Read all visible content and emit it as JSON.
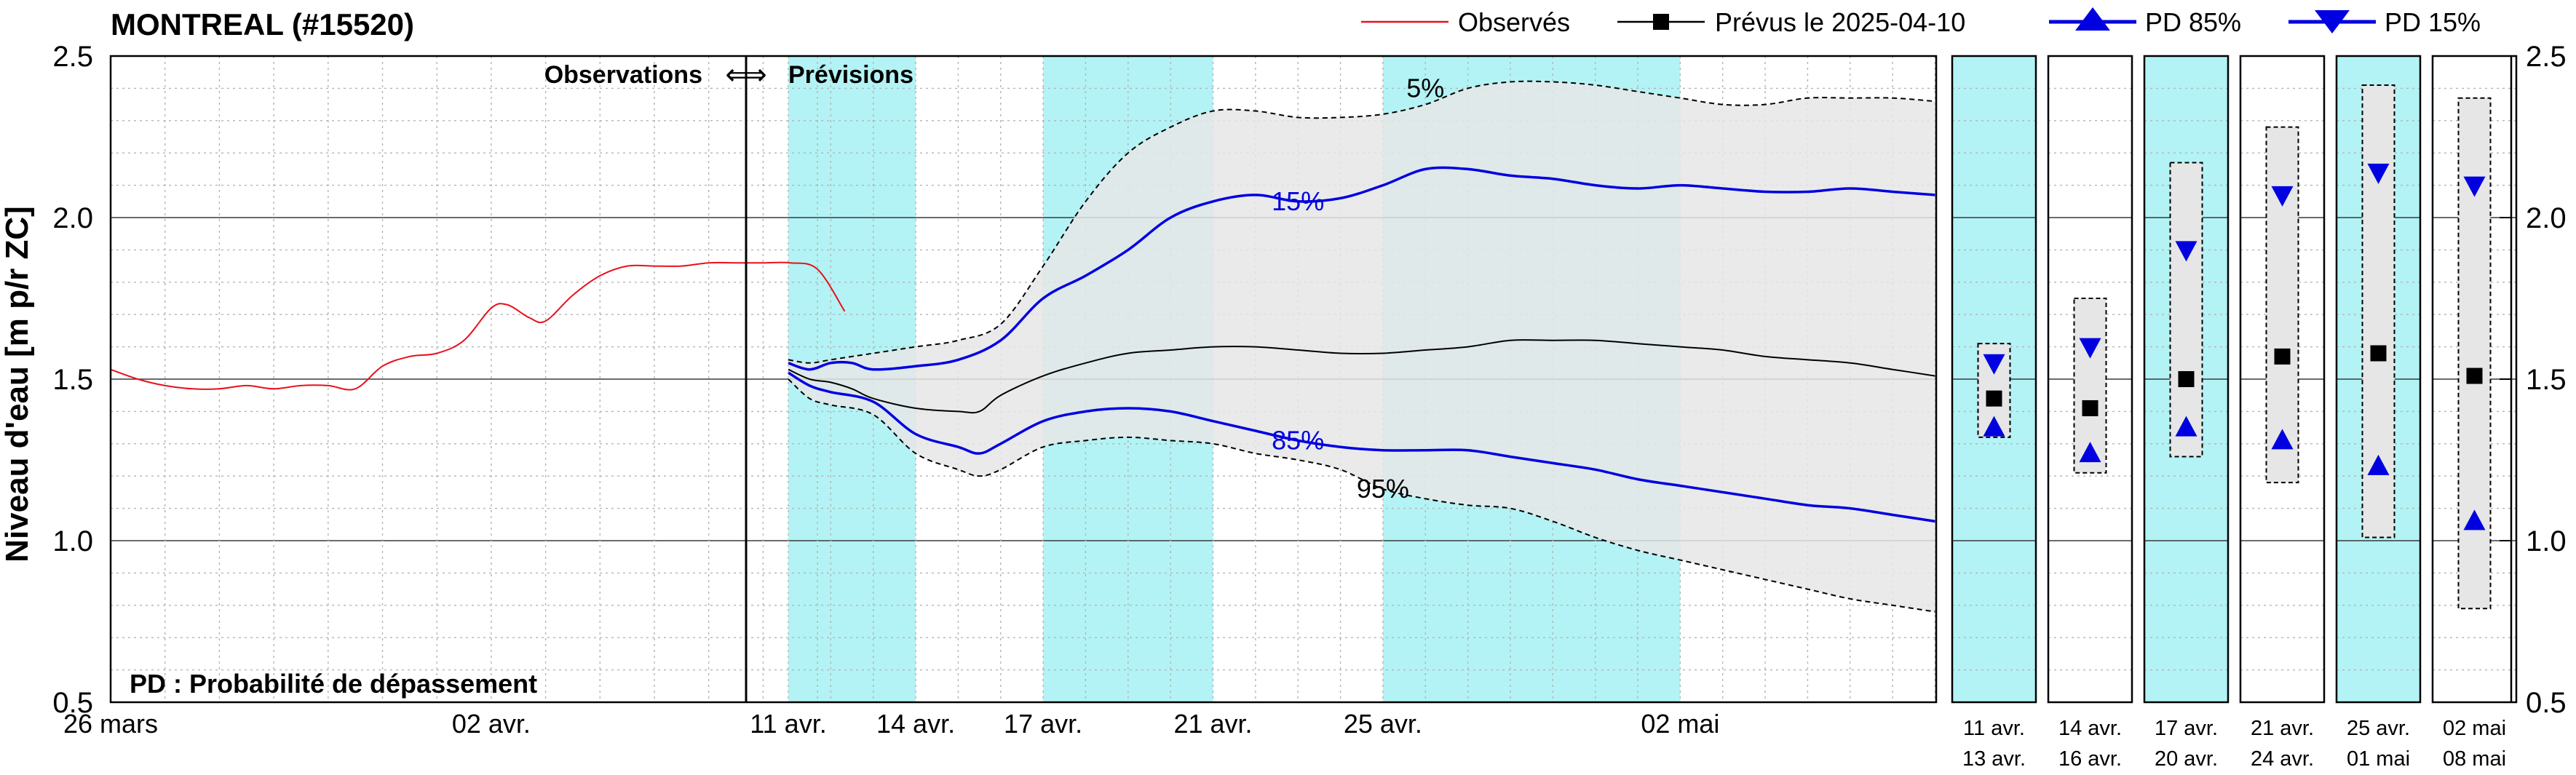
{
  "title": "MONTREAL (#15520)",
  "legend": {
    "observed": "Observés",
    "forecast": "Prévus le 2025-04-10",
    "pd85": "PD 85%",
    "pd15": "PD 15%"
  },
  "annotations": {
    "obs_fcst": "Observations",
    "arrow": "⟺",
    "previsions": "Prévisions",
    "pd_note": "PD : Probabilité de dépassement",
    "p5": "5%",
    "p15": "15%",
    "p85": "85%",
    "p95": "95%"
  },
  "colors": {
    "observed": "#e8111b",
    "forecast": "#000000",
    "pd": "#0000e0",
    "band": "#e6e6e6",
    "highlight": "#b3f3f5"
  },
  "chart_data": {
    "type": "line",
    "ylabel": "Niveau d'eau [m p/r ZC]",
    "ylim": [
      0.5,
      2.5
    ],
    "yticks": [
      "0.5",
      "1.0",
      "1.5",
      "2.0",
      "2.5"
    ],
    "obs_xticks": [
      {
        "day": 0,
        "label": "26 mars"
      },
      {
        "day": 7,
        "label": "02 avr."
      }
    ],
    "fcst_xticks": [
      {
        "day": 0,
        "label": "11 avr."
      },
      {
        "day": 3,
        "label": "14 avr."
      },
      {
        "day": 6,
        "label": "17 avr."
      },
      {
        "day": 10,
        "label": "21 avr."
      },
      {
        "day": 14,
        "label": "25 avr."
      },
      {
        "day": 21,
        "label": "02 mai"
      }
    ],
    "highlight_ranges": [
      [
        0,
        3
      ],
      [
        6,
        10
      ],
      [
        14,
        21
      ]
    ],
    "observed": [
      [
        0,
        1.53
      ],
      [
        0.5,
        1.5
      ],
      [
        1,
        1.48
      ],
      [
        1.5,
        1.47
      ],
      [
        2,
        1.47
      ],
      [
        2.5,
        1.48
      ],
      [
        3,
        1.47
      ],
      [
        3.5,
        1.48
      ],
      [
        4,
        1.48
      ],
      [
        4.5,
        1.47
      ],
      [
        5,
        1.54
      ],
      [
        5.5,
        1.57
      ],
      [
        6,
        1.58
      ],
      [
        6.5,
        1.62
      ],
      [
        7,
        1.72
      ],
      [
        7.3,
        1.73
      ],
      [
        7.7,
        1.69
      ],
      [
        8,
        1.68
      ],
      [
        8.5,
        1.76
      ],
      [
        9,
        1.82
      ],
      [
        9.5,
        1.85
      ],
      [
        10,
        1.85
      ],
      [
        10.5,
        1.85
      ],
      [
        11,
        1.86
      ],
      [
        11.5,
        1.86
      ],
      [
        12,
        1.86
      ],
      [
        12.5,
        1.86
      ],
      [
        13,
        1.84
      ],
      [
        13.5,
        1.71
      ]
    ],
    "forecast": [
      [
        0,
        1.53
      ],
      [
        0.5,
        1.5
      ],
      [
        1,
        1.49
      ],
      [
        1.5,
        1.47
      ],
      [
        2,
        1.44
      ],
      [
        3,
        1.41
      ],
      [
        4,
        1.4
      ],
      [
        4.5,
        1.4
      ],
      [
        5,
        1.45
      ],
      [
        6,
        1.51
      ],
      [
        7,
        1.55
      ],
      [
        8,
        1.58
      ],
      [
        9,
        1.59
      ],
      [
        10,
        1.6
      ],
      [
        11,
        1.6
      ],
      [
        12,
        1.59
      ],
      [
        13,
        1.58
      ],
      [
        14,
        1.58
      ],
      [
        15,
        1.59
      ],
      [
        16,
        1.6
      ],
      [
        17,
        1.62
      ],
      [
        18,
        1.62
      ],
      [
        19,
        1.62
      ],
      [
        20,
        1.61
      ],
      [
        21,
        1.6
      ],
      [
        22,
        1.59
      ],
      [
        23,
        1.57
      ],
      [
        24,
        1.56
      ],
      [
        25,
        1.55
      ],
      [
        26,
        1.53
      ],
      [
        27,
        1.51
      ]
    ],
    "p5": [
      [
        0,
        1.56
      ],
      [
        0.5,
        1.55
      ],
      [
        1,
        1.56
      ],
      [
        2,
        1.58
      ],
      [
        3,
        1.6
      ],
      [
        4,
        1.62
      ],
      [
        5,
        1.67
      ],
      [
        6,
        1.85
      ],
      [
        7,
        2.05
      ],
      [
        8,
        2.2
      ],
      [
        9,
        2.28
      ],
      [
        10,
        2.33
      ],
      [
        11,
        2.33
      ],
      [
        12,
        2.31
      ],
      [
        13,
        2.31
      ],
      [
        14,
        2.32
      ],
      [
        15,
        2.35
      ],
      [
        16,
        2.4
      ],
      [
        17,
        2.42
      ],
      [
        18,
        2.42
      ],
      [
        19,
        2.41
      ],
      [
        20,
        2.39
      ],
      [
        21,
        2.37
      ],
      [
        22,
        2.35
      ],
      [
        23,
        2.35
      ],
      [
        24,
        2.37
      ],
      [
        25,
        2.37
      ],
      [
        26,
        2.37
      ],
      [
        27,
        2.36
      ]
    ],
    "p15": [
      [
        0,
        1.55
      ],
      [
        0.5,
        1.53
      ],
      [
        1,
        1.55
      ],
      [
        1.5,
        1.55
      ],
      [
        2,
        1.53
      ],
      [
        3,
        1.54
      ],
      [
        4,
        1.56
      ],
      [
        5,
        1.62
      ],
      [
        6,
        1.75
      ],
      [
        7,
        1.82
      ],
      [
        8,
        1.9
      ],
      [
        9,
        2.0
      ],
      [
        10,
        2.05
      ],
      [
        11,
        2.07
      ],
      [
        12,
        2.05
      ],
      [
        13,
        2.06
      ],
      [
        14,
        2.1
      ],
      [
        15,
        2.15
      ],
      [
        16,
        2.15
      ],
      [
        17,
        2.13
      ],
      [
        18,
        2.12
      ],
      [
        19,
        2.1
      ],
      [
        20,
        2.09
      ],
      [
        21,
        2.1
      ],
      [
        22,
        2.09
      ],
      [
        23,
        2.08
      ],
      [
        24,
        2.08
      ],
      [
        25,
        2.09
      ],
      [
        26,
        2.08
      ],
      [
        27,
        2.07
      ]
    ],
    "p85": [
      [
        0,
        1.52
      ],
      [
        0.5,
        1.48
      ],
      [
        1,
        1.46
      ],
      [
        2,
        1.43
      ],
      [
        3,
        1.33
      ],
      [
        4,
        1.29
      ],
      [
        4.5,
        1.27
      ],
      [
        5,
        1.3
      ],
      [
        6,
        1.37
      ],
      [
        7,
        1.4
      ],
      [
        8,
        1.41
      ],
      [
        9,
        1.4
      ],
      [
        10,
        1.37
      ],
      [
        11,
        1.34
      ],
      [
        12,
        1.31
      ],
      [
        13,
        1.29
      ],
      [
        14,
        1.28
      ],
      [
        15,
        1.28
      ],
      [
        16,
        1.28
      ],
      [
        17,
        1.26
      ],
      [
        18,
        1.24
      ],
      [
        19,
        1.22
      ],
      [
        20,
        1.19
      ],
      [
        21,
        1.17
      ],
      [
        22,
        1.15
      ],
      [
        23,
        1.13
      ],
      [
        24,
        1.11
      ],
      [
        25,
        1.1
      ],
      [
        26,
        1.08
      ],
      [
        27,
        1.06
      ]
    ],
    "p95": [
      [
        0,
        1.5
      ],
      [
        0.5,
        1.44
      ],
      [
        1,
        1.42
      ],
      [
        2,
        1.39
      ],
      [
        3,
        1.27
      ],
      [
        4,
        1.22
      ],
      [
        4.5,
        1.2
      ],
      [
        5,
        1.22
      ],
      [
        6,
        1.29
      ],
      [
        7,
        1.31
      ],
      [
        8,
        1.32
      ],
      [
        9,
        1.31
      ],
      [
        10,
        1.3
      ],
      [
        11,
        1.27
      ],
      [
        12,
        1.25
      ],
      [
        13,
        1.22
      ],
      [
        14,
        1.16
      ],
      [
        15,
        1.13
      ],
      [
        16,
        1.11
      ],
      [
        17,
        1.1
      ],
      [
        18,
        1.06
      ],
      [
        19,
        1.01
      ],
      [
        20,
        0.97
      ],
      [
        21,
        0.94
      ],
      [
        22,
        0.91
      ],
      [
        23,
        0.88
      ],
      [
        24,
        0.85
      ],
      [
        25,
        0.82
      ],
      [
        26,
        0.8
      ],
      [
        27,
        0.78
      ]
    ],
    "periods": [
      {
        "label1": "11 avr.",
        "label2": "13 avr.",
        "highlight": true,
        "forecast": 1.44,
        "pd85": 1.35,
        "pd15": 1.55,
        "band_low": 1.32,
        "band_high": 1.61
      },
      {
        "label1": "14 avr.",
        "label2": "16 avr.",
        "highlight": false,
        "forecast": 1.41,
        "pd85": 1.27,
        "pd15": 1.6,
        "band_low": 1.21,
        "band_high": 1.75
      },
      {
        "label1": "17 avr.",
        "label2": "20 avr.",
        "highlight": true,
        "forecast": 1.5,
        "pd85": 1.35,
        "pd15": 1.9,
        "band_low": 1.26,
        "band_high": 2.17
      },
      {
        "label1": "21 avr.",
        "label2": "24 avr.",
        "highlight": false,
        "forecast": 1.57,
        "pd85": 1.31,
        "pd15": 2.07,
        "band_low": 1.18,
        "band_high": 2.28
      },
      {
        "label1": "25 avr.",
        "label2": "01 mai",
        "highlight": true,
        "forecast": 1.58,
        "pd85": 1.23,
        "pd15": 2.14,
        "band_low": 1.01,
        "band_high": 2.41
      },
      {
        "label1": "02 mai",
        "label2": "08 mai",
        "highlight": false,
        "forecast": 1.51,
        "pd85": 1.06,
        "pd15": 2.1,
        "band_low": 0.79,
        "band_high": 2.37
      }
    ]
  }
}
